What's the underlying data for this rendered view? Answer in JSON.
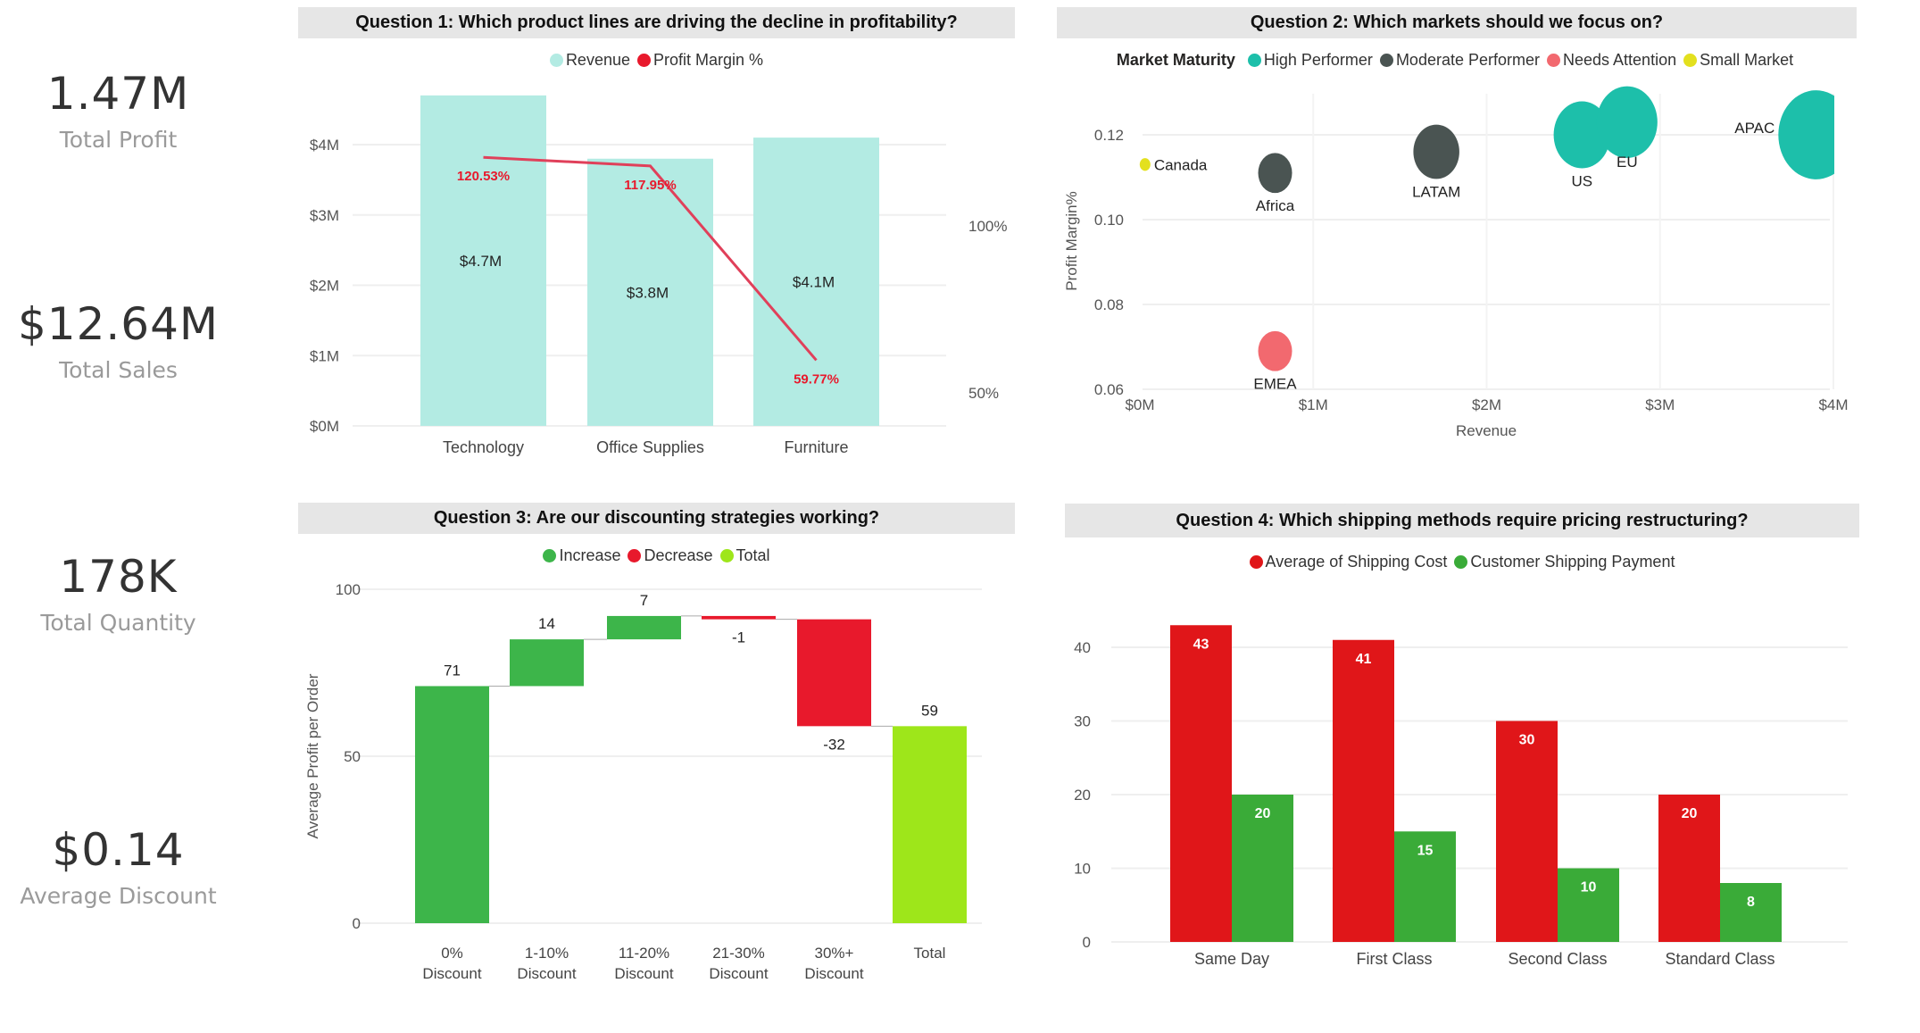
{
  "kpis": [
    {
      "value": "1.47M",
      "label": "Total Profit"
    },
    {
      "value": "$12.64M",
      "label": "Total Sales"
    },
    {
      "value": "178K",
      "label": "Total Quantity"
    },
    {
      "value": "$0.14",
      "label": "Average Discount"
    }
  ],
  "colors": {
    "revenue": "#b3ebe3",
    "profit_margin": "#e8192c",
    "high_performer": "#1dbfaa",
    "moderate_performer": "#4a5452",
    "needs_attention": "#f2696f",
    "small_market": "#e3e01e",
    "increase": "#3db54a",
    "decrease": "#e8192c",
    "total": "#9ee61a",
    "shipping_cost": "#e01619",
    "shipping_payment": "#3aab38",
    "title_bar": "#e6e6e6"
  },
  "chart_data": [
    {
      "id": "q1",
      "type": "bar",
      "title": "Question 1: Which product lines are driving the decline in profitability?",
      "legend": [
        {
          "label": "Revenue",
          "color_key": "revenue"
        },
        {
          "label": "Profit Margin %",
          "color_key": "profit_margin"
        }
      ],
      "categories": [
        "Technology",
        "Office Supplies",
        "Furniture"
      ],
      "series": [
        {
          "name": "Revenue",
          "kind": "bar",
          "axis": "left",
          "values": [
            4.7,
            3.8,
            4.1
          ],
          "labels": [
            "$4.7M",
            "$3.8M",
            "$4.1M"
          ]
        },
        {
          "name": "Profit Margin %",
          "kind": "line",
          "axis": "right",
          "values": [
            120.53,
            117.95,
            59.77
          ],
          "labels": [
            "120.53%",
            "117.95%",
            "59.77%"
          ]
        }
      ],
      "y_left": {
        "ticks": [
          0,
          1,
          2,
          3,
          4
        ],
        "tick_labels": [
          "$0M",
          "$1M",
          "$2M",
          "$3M",
          "$4M"
        ],
        "range": [
          0,
          4.8
        ]
      },
      "y_right": {
        "ticks": [
          50,
          100
        ],
        "tick_labels": [
          "50%",
          "100%"
        ],
        "range": [
          40,
          160
        ]
      },
      "grid": true,
      "legend_position": "top-center"
    },
    {
      "id": "q2",
      "type": "scatter",
      "title": "Question 2: Which markets should we focus on?",
      "legend_title": "Market Maturity",
      "legend": [
        {
          "label": "High Performer",
          "color_key": "high_performer"
        },
        {
          "label": "Moderate Performer",
          "color_key": "moderate_performer"
        },
        {
          "label": "Needs Attention",
          "color_key": "needs_attention"
        },
        {
          "label": "Small Market",
          "color_key": "small_market"
        }
      ],
      "xlabel": "Revenue",
      "ylabel": "Profit Margin%",
      "x_ticks": [
        0,
        1,
        2,
        3,
        4
      ],
      "x_tick_labels": [
        "$0M",
        "$1M",
        "$2M",
        "$3M",
        "$4M"
      ],
      "x_range": [
        0,
        4
      ],
      "y_ticks": [
        0.06,
        0.08,
        0.1,
        0.12
      ],
      "y_tick_labels": [
        "0.06",
        "0.08",
        "0.10",
        "0.12"
      ],
      "y_range": [
        0.06,
        0.126
      ],
      "points": [
        {
          "label": "Canada",
          "x": 0.03,
          "y": 0.113,
          "size": 0.08,
          "group": "small_market"
        },
        {
          "label": "Africa",
          "x": 0.78,
          "y": 0.111,
          "size": 0.8,
          "group": "moderate_performer"
        },
        {
          "label": "LATAM",
          "x": 1.71,
          "y": 0.116,
          "size": 1.7,
          "group": "moderate_performer"
        },
        {
          "label": "US",
          "x": 2.55,
          "y": 0.12,
          "size": 2.5,
          "group": "high_performer"
        },
        {
          "label": "EU",
          "x": 2.81,
          "y": 0.123,
          "size": 2.8,
          "group": "high_performer"
        },
        {
          "label": "APAC",
          "x": 3.9,
          "y": 0.12,
          "size": 3.9,
          "group": "high_performer"
        },
        {
          "label": "EMEA",
          "x": 0.78,
          "y": 0.069,
          "size": 0.8,
          "group": "needs_attention"
        }
      ],
      "grid": true,
      "legend_position": "top-center"
    },
    {
      "id": "q3",
      "type": "bar",
      "subtype": "waterfall",
      "title": "Question 3: Are our discounting strategies working?",
      "legend": [
        {
          "label": "Increase",
          "color_key": "increase"
        },
        {
          "label": "Decrease",
          "color_key": "decrease"
        },
        {
          "label": "Total",
          "color_key": "total"
        }
      ],
      "categories": [
        [
          "0%",
          "Discount"
        ],
        [
          "1-10%",
          "Discount"
        ],
        [
          "11-20%",
          "Discount"
        ],
        [
          "21-30%",
          "Discount"
        ],
        [
          "30%+",
          "Discount"
        ],
        [
          "Total"
        ]
      ],
      "values": [
        71,
        14,
        7,
        -1,
        -32,
        59
      ],
      "kinds": [
        "increase",
        "increase",
        "increase",
        "decrease",
        "decrease",
        "total"
      ],
      "labels": [
        "71",
        "14",
        "7",
        "-1",
        "-32",
        "59"
      ],
      "ylabel": "Average Profit per Order",
      "y_ticks": [
        0,
        50,
        100
      ],
      "y_tick_labels": [
        "0",
        "50",
        "100"
      ],
      "ylim": [
        0,
        100
      ],
      "grid": true,
      "legend_position": "top-center"
    },
    {
      "id": "q4",
      "type": "bar",
      "title": "Question 4: Which shipping methods require pricing restructuring?",
      "legend": [
        {
          "label": "Average of Shipping Cost",
          "color_key": "shipping_cost"
        },
        {
          "label": "Customer Shipping Payment",
          "color_key": "shipping_payment"
        }
      ],
      "categories": [
        "Same Day",
        "First Class",
        "Second Class",
        "Standard Class"
      ],
      "series": [
        {
          "name": "Average of Shipping Cost",
          "color_key": "shipping_cost",
          "values": [
            43,
            41,
            30,
            20
          ]
        },
        {
          "name": "Customer Shipping Payment",
          "color_key": "shipping_payment",
          "values": [
            20,
            15,
            10,
            8
          ]
        }
      ],
      "y_ticks": [
        0,
        10,
        20,
        30,
        40
      ],
      "y_tick_labels": [
        "0",
        "10",
        "20",
        "30",
        "40"
      ],
      "ylim": [
        0,
        43
      ],
      "grid": true,
      "legend_position": "top-center"
    }
  ]
}
